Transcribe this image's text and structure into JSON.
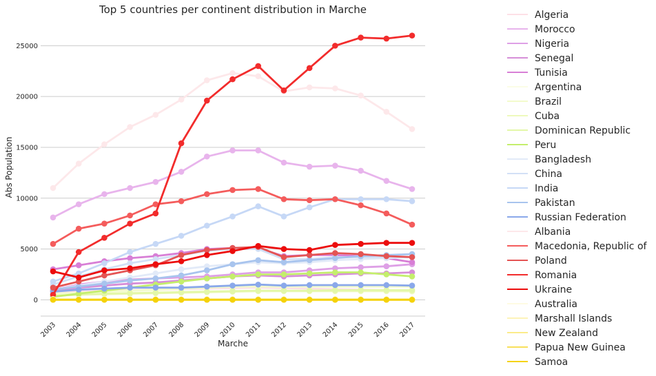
{
  "chart_data": {
    "type": "line",
    "title": "Top 5 countries per continent distribution in Marche",
    "xlabel": "Marche",
    "ylabel": "Abs Population",
    "categories": [
      "2003",
      "2004",
      "2005",
      "2006",
      "2007",
      "2008",
      "2009",
      "2010",
      "2011",
      "2012",
      "2013",
      "2014",
      "2015",
      "2016",
      "2017"
    ],
    "ylim": [
      -1600,
      27600
    ],
    "yticks": [
      0,
      5000,
      10000,
      15000,
      20000,
      25000
    ],
    "grid": "horizontal",
    "legend_position": "right",
    "series": [
      {
        "name": "Algeria",
        "color": "#fde0e6",
        "values": [
          800,
          850,
          900,
          950,
          1000,
          1050,
          1100,
          1150,
          1200,
          1150,
          1100,
          1050,
          1000,
          950,
          900
        ]
      },
      {
        "name": "Morocco",
        "color": "#e8b4ec",
        "values": [
          8100,
          9400,
          10400,
          11000,
          11600,
          12600,
          14100,
          14700,
          14700,
          13500,
          13100,
          13200,
          12700,
          11700,
          10900
        ]
      },
      {
        "name": "Nigeria",
        "color": "#dea0e6",
        "values": [
          1000,
          1500,
          1800,
          2000,
          2100,
          2200,
          2300,
          2500,
          2700,
          2700,
          2900,
          3100,
          3200,
          3300,
          3500
        ]
      },
      {
        "name": "Senegal",
        "color": "#d68ed8",
        "values": [
          900,
          1200,
          1400,
          1600,
          1700,
          1900,
          2100,
          2300,
          2400,
          2300,
          2400,
          2500,
          2600,
          2600,
          2700
        ]
      },
      {
        "name": "Tunisia",
        "color": "#d87fd6",
        "values": [
          3000,
          3400,
          3800,
          4100,
          4300,
          4600,
          5000,
          5100,
          5100,
          4300,
          4400,
          4400,
          4300,
          4100,
          3700
        ]
      },
      {
        "name": "Argentina",
        "color": "#fbfde6",
        "values": [
          600,
          650,
          700,
          750,
          800,
          800,
          850,
          850,
          900,
          900,
          900,
          900,
          900,
          850,
          800
        ]
      },
      {
        "name": "Brazil",
        "color": "#f3fbcc",
        "values": [
          600,
          700,
          800,
          900,
          1000,
          1100,
          1200,
          1300,
          1300,
          1300,
          1300,
          1300,
          1300,
          1300,
          1300
        ]
      },
      {
        "name": "Cuba",
        "color": "#eef9bc",
        "values": [
          400,
          500,
          550,
          600,
          650,
          700,
          750,
          800,
          850,
          850,
          850,
          850,
          850,
          850,
          850
        ]
      },
      {
        "name": "Dominican Republic",
        "color": "#e3f7a8",
        "values": [
          400,
          500,
          600,
          650,
          700,
          750,
          800,
          850,
          900,
          900,
          900,
          950,
          950,
          950,
          950
        ]
      },
      {
        "name": "Peru",
        "color": "#c4ee6c",
        "values": [
          300,
          600,
          900,
          1200,
          1500,
          1800,
          2100,
          2300,
          2500,
          2500,
          2600,
          2700,
          2700,
          2500,
          2300
        ]
      },
      {
        "name": "Bangladesh",
        "color": "#e2eaf8",
        "values": [
          1000,
          1400,
          1800,
          2200,
          2600,
          3000,
          3300,
          3500,
          3700,
          3600,
          3700,
          3900,
          4000,
          4100,
          4200
        ]
      },
      {
        "name": "China",
        "color": "#d2e0f6",
        "values": [
          1500,
          2300,
          3000,
          3600,
          4000,
          4400,
          4800,
          5000,
          5000,
          4000,
          4000,
          4200,
          4200,
          4200,
          4200
        ]
      },
      {
        "name": "India",
        "color": "#c6d8f6",
        "values": [
          1800,
          2600,
          3600,
          4700,
          5500,
          6300,
          7300,
          8200,
          9200,
          8200,
          9100,
          9900,
          9900,
          9900,
          9700
        ]
      },
      {
        "name": "Pakistan",
        "color": "#a8c4ee",
        "values": [
          1000,
          1300,
          1600,
          1900,
          2100,
          2400,
          2900,
          3500,
          3900,
          3700,
          3900,
          4100,
          4300,
          4400,
          4500
        ]
      },
      {
        "name": "Russian Federation",
        "color": "#8aa8ea",
        "values": [
          800,
          1000,
          1100,
          1200,
          1200,
          1200,
          1300,
          1400,
          1500,
          1400,
          1450,
          1450,
          1450,
          1450,
          1400
        ]
      },
      {
        "name": "Albania",
        "color": "#fde8ea",
        "values": [
          11000,
          13400,
          15300,
          17000,
          18200,
          19700,
          21600,
          22300,
          22000,
          20500,
          20900,
          20800,
          20100,
          18500,
          16800
        ]
      },
      {
        "name": "Macedonia, Republic of",
        "color": "#f45c5c",
        "values": [
          5500,
          7000,
          7500,
          8300,
          9400,
          9700,
          10400,
          10800,
          10900,
          9900,
          9800,
          9900,
          9300,
          8500,
          7400
        ]
      },
      {
        "name": "Poland",
        "color": "#e45454",
        "values": [
          1200,
          1800,
          2400,
          2900,
          3400,
          4400,
          4900,
          5100,
          5200,
          4200,
          4400,
          4600,
          4500,
          4300,
          4200
        ]
      },
      {
        "name": "Romania",
        "color": "#f22c2c",
        "values": [
          500,
          4700,
          6100,
          7500,
          8500,
          15400,
          19600,
          21700,
          23000,
          20600,
          22800,
          25000,
          25800,
          25700,
          26000
        ]
      },
      {
        "name": "Ukraine",
        "color": "#ec0c0c",
        "values": [
          2800,
          2200,
          2900,
          3100,
          3500,
          3800,
          4400,
          4800,
          5300,
          5000,
          4900,
          5400,
          5500,
          5600,
          5600
        ]
      },
      {
        "name": "Australia",
        "color": "#fefbe2",
        "values": [
          80,
          80,
          80,
          80,
          80,
          80,
          80,
          80,
          80,
          80,
          80,
          80,
          80,
          80,
          80
        ]
      },
      {
        "name": "Marshall Islands",
        "color": "#fdf3b8",
        "values": [
          20,
          20,
          20,
          20,
          20,
          20,
          20,
          20,
          20,
          20,
          20,
          20,
          20,
          20,
          20
        ]
      },
      {
        "name": "New Zealand",
        "color": "#fbec8a",
        "values": [
          30,
          30,
          30,
          30,
          30,
          30,
          30,
          30,
          30,
          30,
          30,
          30,
          30,
          30,
          30
        ]
      },
      {
        "name": "Papua New Guinea",
        "color": "#f8e05a",
        "values": [
          10,
          10,
          10,
          10,
          10,
          10,
          10,
          10,
          10,
          10,
          10,
          10,
          10,
          10,
          10
        ]
      },
      {
        "name": "Samoa",
        "color": "#f5d20a",
        "values": [
          0,
          0,
          0,
          0,
          0,
          0,
          0,
          0,
          0,
          0,
          0,
          0,
          0,
          0,
          0
        ]
      }
    ]
  }
}
